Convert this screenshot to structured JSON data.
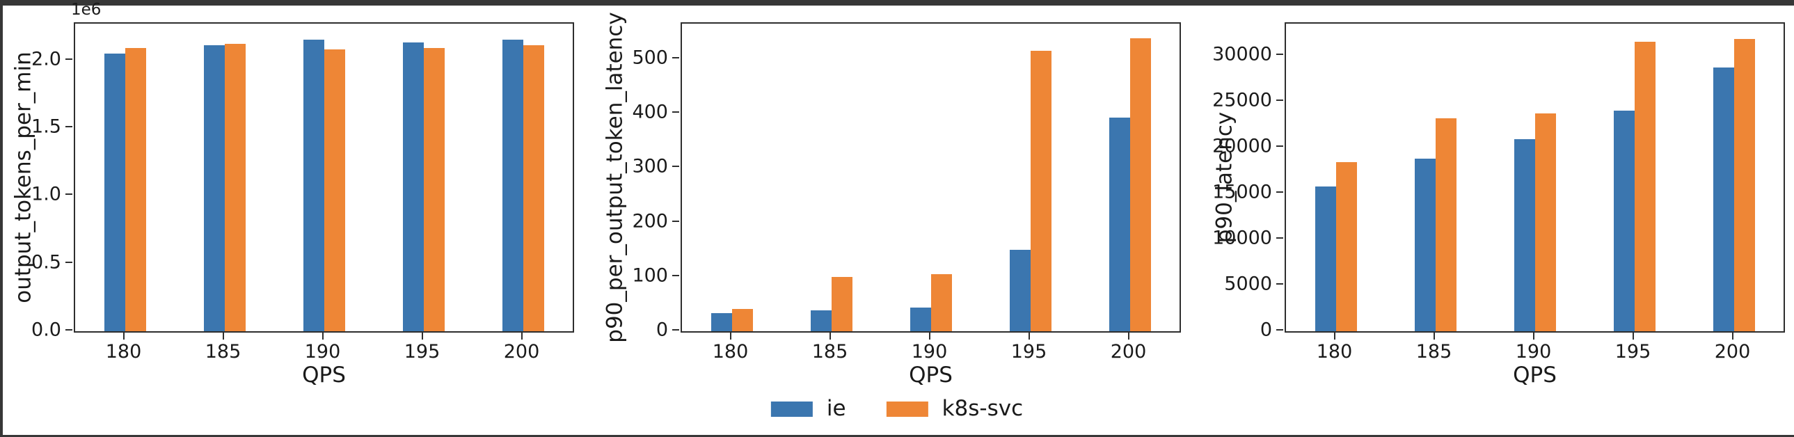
{
  "page": {
    "background": "#ffffff",
    "frame_band_color": "#373737",
    "axis_color": "#2e2e2e"
  },
  "legend": {
    "items": [
      {
        "label": "ie",
        "color": "#3b76af"
      },
      {
        "label": "k8s-svc",
        "color": "#ee8636"
      }
    ]
  },
  "chart_data": [
    {
      "type": "bar",
      "title": "",
      "ylabel": "output_tokens_per_min",
      "xlabel": "QPS",
      "y_offset_label": "1e6",
      "categories": [
        "180",
        "185",
        "190",
        "195",
        "200"
      ],
      "series": [
        {
          "name": "ie",
          "color": "#3b76af",
          "values": [
            2050000,
            2110000,
            2150000,
            2130000,
            2150000
          ]
        },
        {
          "name": "k8s-svc",
          "color": "#ee8636",
          "values": [
            2090000,
            2120000,
            2080000,
            2090000,
            2110000
          ]
        }
      ],
      "ylim": [
        0,
        2270000
      ],
      "yticks": [
        {
          "value": 0,
          "label": "0.0"
        },
        {
          "value": 500000,
          "label": "0.5"
        },
        {
          "value": 1000000,
          "label": "1.0"
        },
        {
          "value": 1500000,
          "label": "1.5"
        },
        {
          "value": 2000000,
          "label": "2.0"
        }
      ],
      "grid": false,
      "legend_position": "bottom-center-shared"
    },
    {
      "type": "bar",
      "title": "",
      "ylabel": "p90_per_output_token_latency",
      "xlabel": "QPS",
      "y_offset_label": "",
      "categories": [
        "180",
        "185",
        "190",
        "195",
        "200"
      ],
      "series": [
        {
          "name": "ie",
          "color": "#3b76af",
          "values": [
            33,
            39,
            44,
            150,
            393
          ]
        },
        {
          "name": "k8s-svc",
          "color": "#ee8636",
          "values": [
            41,
            100,
            105,
            515,
            538
          ]
        }
      ],
      "ylim": [
        0,
        565
      ],
      "yticks": [
        {
          "value": 0,
          "label": "0"
        },
        {
          "value": 100,
          "label": "100"
        },
        {
          "value": 200,
          "label": "200"
        },
        {
          "value": 300,
          "label": "300"
        },
        {
          "value": 400,
          "label": "400"
        },
        {
          "value": 500,
          "label": "500"
        }
      ],
      "grid": false,
      "legend_position": "bottom-center-shared"
    },
    {
      "type": "bar",
      "title": "",
      "ylabel": "p90_latency",
      "xlabel": "QPS",
      "y_offset_label": "",
      "categories": [
        "180",
        "185",
        "190",
        "195",
        "200"
      ],
      "series": [
        {
          "name": "ie",
          "color": "#3b76af",
          "values": [
            15800,
            18800,
            20900,
            24000,
            28700
          ]
        },
        {
          "name": "k8s-svc",
          "color": "#ee8636",
          "values": [
            18400,
            23200,
            23700,
            31500,
            31800
          ]
        }
      ],
      "ylim": [
        0,
        33500
      ],
      "yticks": [
        {
          "value": 0,
          "label": "0"
        },
        {
          "value": 5000,
          "label": "5000"
        },
        {
          "value": 10000,
          "label": "10000"
        },
        {
          "value": 15000,
          "label": "15000"
        },
        {
          "value": 20000,
          "label": "20000"
        },
        {
          "value": 25000,
          "label": "25000"
        },
        {
          "value": 30000,
          "label": "30000"
        }
      ],
      "grid": false,
      "legend_position": "bottom-center-shared"
    }
  ]
}
